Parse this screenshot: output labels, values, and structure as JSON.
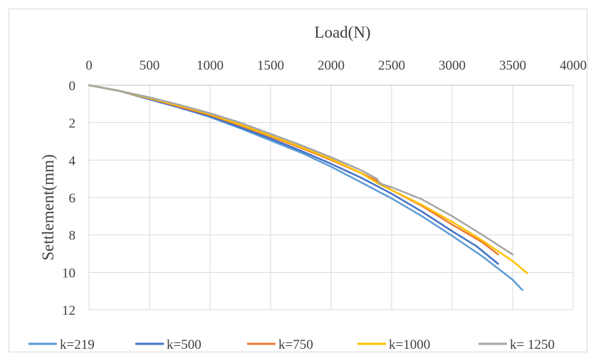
{
  "chart_data": {
    "type": "line",
    "title": "",
    "xlabel": "Load(N)",
    "ylabel": "Settlement(mm)",
    "xlim": [
      0,
      4000
    ],
    "ylim": [
      0,
      12
    ],
    "y_inverted": true,
    "x_axis_position": "top",
    "x_ticks": [
      0,
      500,
      1000,
      1500,
      2000,
      2500,
      3000,
      3500,
      4000
    ],
    "y_ticks": [
      0,
      2,
      4,
      6,
      8,
      10,
      12
    ],
    "grid": true,
    "legend_position": "bottom",
    "series": [
      {
        "name": "k=219",
        "color": "#5B9BD5",
        "x": [
          0,
          250,
          500,
          750,
          1000,
          1250,
          1500,
          1750,
          2000,
          2250,
          2500,
          2750,
          3000,
          3250,
          3500,
          3580
        ],
        "y": [
          0,
          0.3,
          0.75,
          1.2,
          1.7,
          2.3,
          2.95,
          3.6,
          4.35,
          5.2,
          6.05,
          7.0,
          8.05,
          9.15,
          10.4,
          10.95
        ]
      },
      {
        "name": "k=500",
        "color": "#4472C4",
        "x": [
          0,
          250,
          500,
          750,
          1000,
          1250,
          1500,
          1750,
          2000,
          2250,
          2500,
          2750,
          3000,
          3200,
          3380
        ],
        "y": [
          0,
          0.3,
          0.75,
          1.2,
          1.65,
          2.25,
          2.85,
          3.5,
          4.2,
          4.95,
          5.8,
          6.75,
          7.8,
          8.6,
          9.55
        ]
      },
      {
        "name": "k=750",
        "color": "#ED7D31",
        "x": [
          0,
          250,
          500,
          750,
          1000,
          1250,
          1500,
          1750,
          2000,
          2250,
          2350,
          2400,
          2500,
          2750,
          3000,
          3250,
          3380
        ],
        "y": [
          0,
          0.3,
          0.7,
          1.15,
          1.6,
          2.15,
          2.75,
          3.35,
          4.0,
          4.7,
          5.0,
          5.2,
          5.6,
          6.45,
          7.45,
          8.4,
          9.05
        ]
      },
      {
        "name": "k=1000",
        "color": "#FFC000",
        "x": [
          0,
          250,
          500,
          750,
          1000,
          1250,
          1500,
          1750,
          2000,
          2250,
          2350,
          2400,
          2500,
          2750,
          3000,
          3250,
          3500,
          3620
        ],
        "y": [
          0,
          0.3,
          0.7,
          1.1,
          1.55,
          2.1,
          2.7,
          3.3,
          3.95,
          4.7,
          5.1,
          5.3,
          5.6,
          6.4,
          7.3,
          8.3,
          9.4,
          10.05
        ]
      },
      {
        "name": "k= 1250",
        "color": "#A5A5A5",
        "x": [
          0,
          250,
          500,
          750,
          1000,
          1250,
          1500,
          1750,
          2000,
          2250,
          2380,
          2400,
          2500,
          2750,
          3000,
          3250,
          3500
        ],
        "y": [
          0,
          0.3,
          0.65,
          1.05,
          1.5,
          2.0,
          2.6,
          3.2,
          3.85,
          4.55,
          5.0,
          5.25,
          5.45,
          6.1,
          7.0,
          8.0,
          9.05
        ]
      }
    ]
  }
}
